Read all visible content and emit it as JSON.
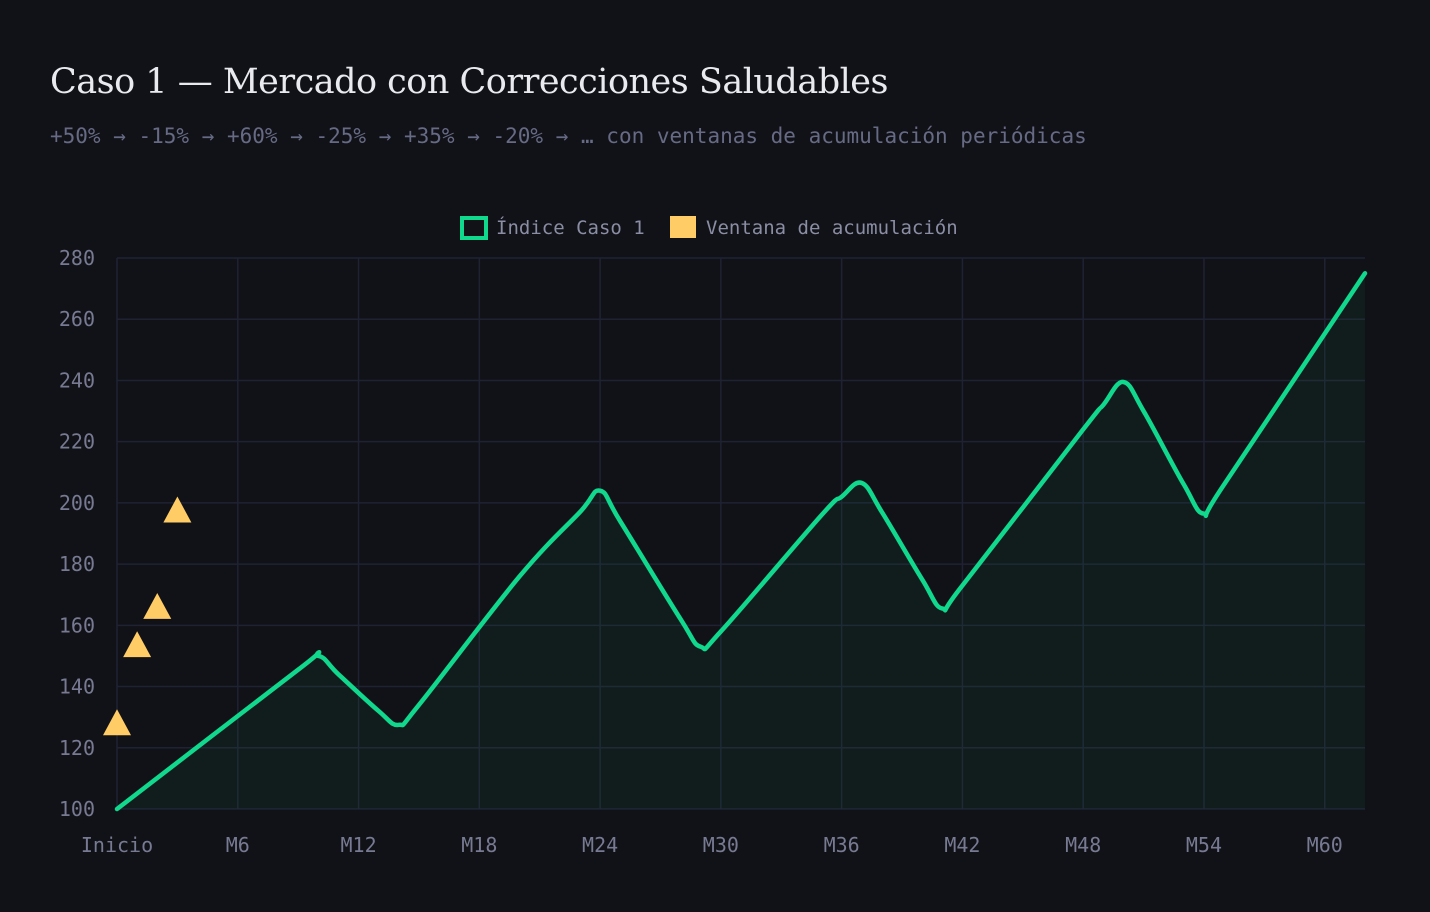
{
  "header": {
    "title": "Caso 1 — Mercado con Correcciones Saludables",
    "subtitle": "+50% → -15% → +60% → -25% → +35% → -20% → … con ventanas de acumulación periódicas"
  },
  "colors": {
    "background": "#111217",
    "line": "#10d98e",
    "marker": "#ffcc66",
    "grid": "#1f2233",
    "tick_text": "#777a92"
  },
  "chart_data": {
    "type": "line",
    "title": "Caso 1 — Mercado con Correcciones Saludables",
    "subtitle": "+50% → -15% → +60% → -25% → +35% → -20% → … con ventanas de acumulación periódicas",
    "x_tick_labels": [
      "Inicio",
      "M6",
      "M12",
      "M18",
      "M24",
      "M30",
      "M36",
      "M42",
      "M48",
      "M54",
      "M60"
    ],
    "x_tick_months": [
      0,
      6,
      12,
      18,
      24,
      30,
      36,
      42,
      48,
      54,
      60
    ],
    "xlim": [
      0,
      62
    ],
    "ylim": [
      100,
      280
    ],
    "y_ticks": [
      100,
      120,
      140,
      160,
      180,
      200,
      220,
      240,
      260,
      280
    ],
    "grid": true,
    "legend_position": "top-center",
    "series": [
      {
        "name": "Índice Caso 1",
        "type": "line",
        "color": "#10d98e",
        "points": [
          [
            0,
            100
          ],
          [
            9,
            145.5
          ],
          [
            10,
            150
          ],
          [
            11,
            144
          ],
          [
            13,
            132
          ],
          [
            14,
            127.5
          ],
          [
            15,
            134
          ],
          [
            20,
            176
          ],
          [
            23,
            197
          ],
          [
            24,
            204
          ],
          [
            25,
            194
          ],
          [
            28,
            162
          ],
          [
            29,
            153
          ],
          [
            30,
            158
          ],
          [
            35,
            196
          ],
          [
            36,
            202
          ],
          [
            37,
            206.5
          ],
          [
            38,
            197
          ],
          [
            40,
            175
          ],
          [
            41,
            165.5
          ],
          [
            42,
            173
          ],
          [
            48,
            224
          ],
          [
            49,
            232
          ],
          [
            50,
            239.5
          ],
          [
            51,
            230
          ],
          [
            53,
            206
          ],
          [
            54,
            196.5
          ],
          [
            55,
            206
          ],
          [
            62,
            275
          ]
        ]
      },
      {
        "name": "Ventana de acumulación",
        "type": "scatter",
        "marker": "triangle",
        "color": "#ffcc66",
        "points": [
          [
            0,
            128
          ],
          [
            1,
            153.5
          ],
          [
            2,
            166
          ],
          [
            3,
            197.5
          ]
        ]
      }
    ]
  }
}
